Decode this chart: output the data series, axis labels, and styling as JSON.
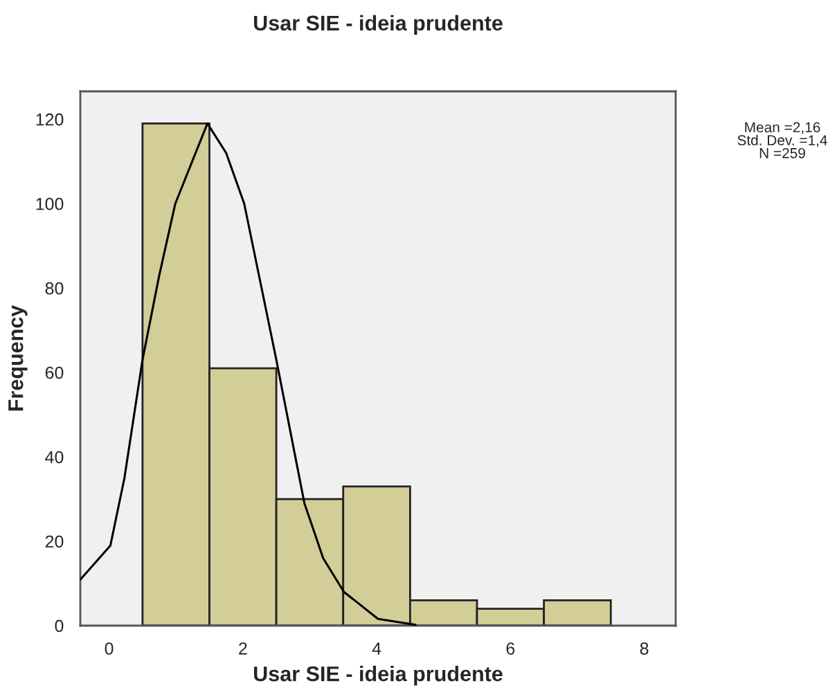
{
  "chart_data": {
    "type": "histogram",
    "title": "Usar SIE - ideia prudente",
    "xlabel": "Usar SIE - ideia prudente",
    "ylabel": "Frequency",
    "bins": [
      0.5,
      1.5,
      2.5,
      3.5,
      4.5,
      5.5,
      6.5,
      7.5
    ],
    "values": [
      119,
      61,
      30,
      33,
      6,
      4,
      6
    ],
    "color": "#d3cd98",
    "series": [
      {
        "type": "line",
        "color": "#000000",
        "x": [
          -0.43,
          0.02,
          0.23,
          0.5,
          0.75,
          0.99,
          1.47,
          1.75,
          2.02,
          2.26,
          2.5,
          2.92,
          3.2,
          3.51,
          4.02,
          4.58
        ],
        "values": [
          10.9,
          19,
          35,
          63,
          83,
          100,
          119,
          112,
          100,
          81.5,
          63,
          29,
          16,
          8,
          1.6,
          0.2
        ]
      }
    ],
    "xlim": [
      -0.43,
      8.47
    ],
    "ylim": [
      0,
      126.6
    ],
    "xticks": [
      0,
      2,
      4,
      6,
      8
    ],
    "yticks": [
      0,
      20,
      40,
      60,
      80,
      100,
      120
    ],
    "annotations": [
      "Mean =2,16\nStd. Dev. =1,4\nN =259"
    ],
    "grid": false,
    "legend": false
  }
}
